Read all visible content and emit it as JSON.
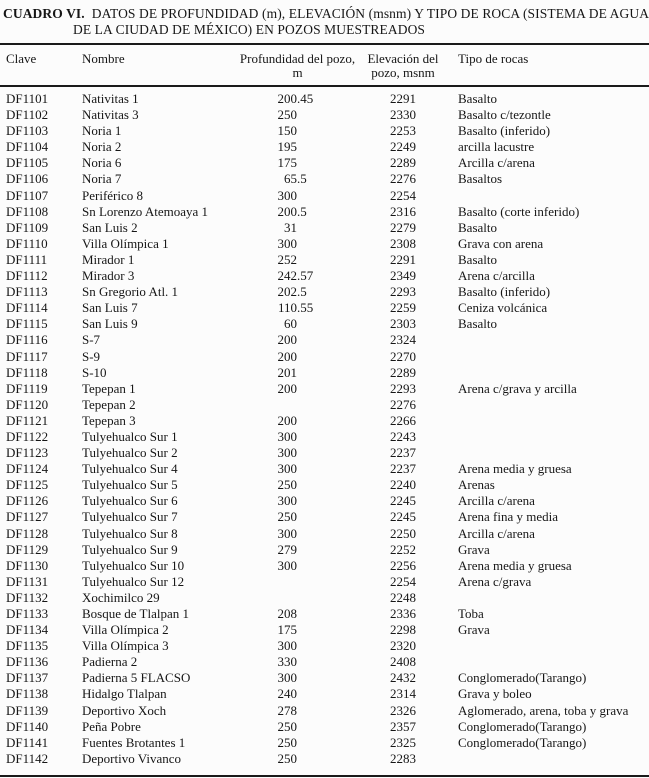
{
  "title": {
    "label": "CUADRO VI.",
    "line1": "DATOS DE PROFUNDIDAD (m), ELEVACIÓN (msnm) Y TIPO DE ROCA (SISTEMA DE AGUAS",
    "line2": "DE LA CIUDAD DE MÉXICO) EN POZOS MUESTREADOS"
  },
  "table": {
    "headers": {
      "clave": "Clave",
      "nombre": "Nombre",
      "profundidad_line1": "Profundidad del pozo,",
      "profundidad_line2": "m",
      "elevacion_line1": "Elevación del",
      "elevacion_line2": "pozo, msnm",
      "tipo": "Tipo de rocas"
    },
    "rows": [
      {
        "clave": "DF1101",
        "nombre": "Nativitas 1",
        "profundidad": "200.45",
        "elevacion": "2291",
        "tipo": "Basalto"
      },
      {
        "clave": "DF1102",
        "nombre": "Nativitas 3",
        "profundidad": "250",
        "elevacion": "2330",
        "tipo": "Basalto c/tezontle"
      },
      {
        "clave": "DF1103",
        "nombre": "Noria 1",
        "profundidad": "150",
        "elevacion": "2253",
        "tipo": "Basalto (inferido)"
      },
      {
        "clave": "DF1104",
        "nombre": "Noria 2",
        "profundidad": "195",
        "elevacion": "2249",
        "tipo": "arcilla lacustre"
      },
      {
        "clave": "DF1105",
        "nombre": "Noria 6",
        "profundidad": "175",
        "elevacion": "2289",
        "tipo": "Arcilla c/arena"
      },
      {
        "clave": "DF1106",
        "nombre": "Noria 7",
        "profundidad": "65.5",
        "elevacion": "2276",
        "tipo": "Basaltos"
      },
      {
        "clave": "DF1107",
        "nombre": "Periférico 8",
        "profundidad": "300",
        "elevacion": "2254",
        "tipo": ""
      },
      {
        "clave": "DF1108",
        "nombre": "Sn Lorenzo Atemoaya 1",
        "profundidad": "200.5",
        "elevacion": "2316",
        "tipo": "Basalto (corte inferido)"
      },
      {
        "clave": "DF1109",
        "nombre": "San Luis 2",
        "profundidad": "31",
        "elevacion": "2279",
        "tipo": "Basalto"
      },
      {
        "clave": "DF1110",
        "nombre": "Villa Olímpica 1",
        "profundidad": "300",
        "elevacion": "2308",
        "tipo": "Grava con arena"
      },
      {
        "clave": "DF1111",
        "nombre": "Mirador 1",
        "profundidad": "252",
        "elevacion": "2291",
        "tipo": "Basalto"
      },
      {
        "clave": "DF1112",
        "nombre": "Mirador 3",
        "profundidad": "242.57",
        "elevacion": "2349",
        "tipo": "Arena c/arcilla"
      },
      {
        "clave": "DF1113",
        "nombre": "Sn Gregorio Atl. 1",
        "profundidad": "202.5",
        "elevacion": "2293",
        "tipo": "Basalto (inferido)"
      },
      {
        "clave": "DF1114",
        "nombre": "San Luis 7",
        "profundidad": "110.55",
        "elevacion": "2259",
        "tipo": "Ceniza volcánica"
      },
      {
        "clave": "DF1115",
        "nombre": "San Luis 9",
        "profundidad": "60",
        "elevacion": "2303",
        "tipo": "Basalto"
      },
      {
        "clave": "DF1116",
        "nombre": "S-7",
        "profundidad": "200",
        "elevacion": "2324",
        "tipo": ""
      },
      {
        "clave": "DF1117",
        "nombre": "S-9",
        "profundidad": "200",
        "elevacion": "2270",
        "tipo": ""
      },
      {
        "clave": "DF1118",
        "nombre": "S-10",
        "profundidad": "201",
        "elevacion": "2289",
        "tipo": ""
      },
      {
        "clave": "DF1119",
        "nombre": "Tepepan 1",
        "profundidad": "200",
        "elevacion": "2293",
        "tipo": "Arena c/grava y arcilla"
      },
      {
        "clave": "DF1120",
        "nombre": "Tepepan 2",
        "profundidad": "",
        "elevacion": "2276",
        "tipo": ""
      },
      {
        "clave": "DF1121",
        "nombre": "Tepepan 3",
        "profundidad": "200",
        "elevacion": "2266",
        "tipo": ""
      },
      {
        "clave": "DF1122",
        "nombre": "Tulyehualco Sur 1",
        "profundidad": "300",
        "elevacion": "2243",
        "tipo": ""
      },
      {
        "clave": "DF1123",
        "nombre": "Tulyehualco Sur 2",
        "profundidad": "300",
        "elevacion": "2237",
        "tipo": ""
      },
      {
        "clave": "DF1124",
        "nombre": "Tulyehualco Sur 4",
        "profundidad": "300",
        "elevacion": "2237",
        "tipo": "Arena media y gruesa"
      },
      {
        "clave": "DF1125",
        "nombre": "Tulyehualco Sur 5",
        "profundidad": "250",
        "elevacion": "2240",
        "tipo": "Arenas"
      },
      {
        "clave": "DF1126",
        "nombre": "Tulyehualco Sur 6",
        "profundidad": "300",
        "elevacion": "2245",
        "tipo": "Arcilla c/arena"
      },
      {
        "clave": "DF1127",
        "nombre": "Tulyehualco Sur 7",
        "profundidad": "250",
        "elevacion": "2245",
        "tipo": "Arena fina y media"
      },
      {
        "clave": "DF1128",
        "nombre": "Tulyehualco Sur 8",
        "profundidad": "300",
        "elevacion": "2250",
        "tipo": "Arcilla c/arena"
      },
      {
        "clave": "DF1129",
        "nombre": "Tulyehualco Sur 9",
        "profundidad": "279",
        "elevacion": "2252",
        "tipo": "Grava"
      },
      {
        "clave": "DF1130",
        "nombre": "Tulyehualco Sur 10",
        "profundidad": "300",
        "elevacion": "2256",
        "tipo": "Arena media y gruesa"
      },
      {
        "clave": "DF1131",
        "nombre": "Tulyehualco Sur 12",
        "profundidad": "",
        "elevacion": "2254",
        "tipo": "Arena c/grava"
      },
      {
        "clave": "DF1132",
        "nombre": "Xochimilco 29",
        "profundidad": "",
        "elevacion": "2248",
        "tipo": ""
      },
      {
        "clave": "DF1133",
        "nombre": "Bosque de Tlalpan 1",
        "profundidad": "208",
        "elevacion": "2336",
        "tipo": "Toba"
      },
      {
        "clave": "DF1134",
        "nombre": "Villa Olímpica 2",
        "profundidad": "175",
        "elevacion": "2298",
        "tipo": "Grava"
      },
      {
        "clave": "DF1135",
        "nombre": "Villa Olímpica 3",
        "profundidad": "300",
        "elevacion": "2320",
        "tipo": ""
      },
      {
        "clave": "DF1136",
        "nombre": "Padierna 2",
        "profundidad": "330",
        "elevacion": "2408",
        "tipo": ""
      },
      {
        "clave": "DF1137",
        "nombre": "Padierna 5 FLACSO",
        "profundidad": "300",
        "elevacion": "2432",
        "tipo": "Conglomerado(Tarango)"
      },
      {
        "clave": "DF1138",
        "nombre": "Hidalgo Tlalpan",
        "profundidad": "240",
        "elevacion": "2314",
        "tipo": "Grava y boleo"
      },
      {
        "clave": "DF1139",
        "nombre": "Deportivo Xoch",
        "profundidad": "278",
        "elevacion": "2326",
        "tipo": "Aglomerado, arena, toba y grava"
      },
      {
        "clave": "DF1140",
        "nombre": "Peña Pobre",
        "profundidad": "250",
        "elevacion": "2357",
        "tipo": "Conglomerado(Tarango)"
      },
      {
        "clave": "DF1141",
        "nombre": "Fuentes Brotantes 1",
        "profundidad": "250",
        "elevacion": "2325",
        "tipo": "Conglomerado(Tarango)"
      },
      {
        "clave": "DF1142",
        "nombre": "Deportivo Vivanco",
        "profundidad": "250",
        "elevacion": "2283",
        "tipo": ""
      }
    ]
  },
  "colors": {
    "background": "#fcfcfc",
    "text": "#161616",
    "rule": "#1a1a1a"
  }
}
